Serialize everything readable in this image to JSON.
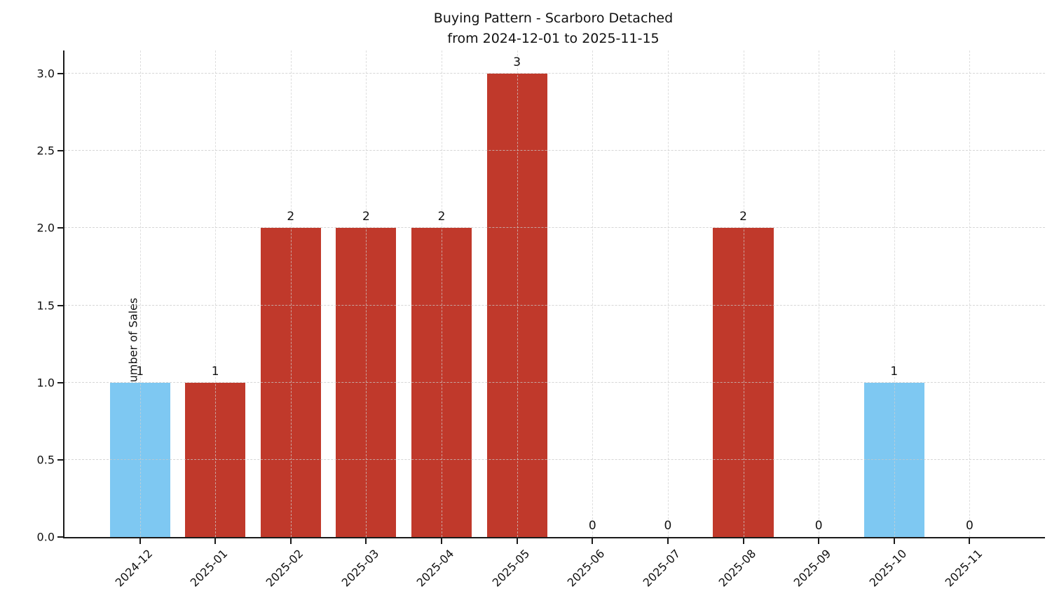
{
  "title": {
    "line1": "Buying Pattern - Scarboro Detached",
    "line2": "from 2024-12-01 to 2025-11-15"
  },
  "chart_data": {
    "type": "bar",
    "title": "Buying Pattern - Scarboro Detached\nfrom 2024-12-01 to 2025-11-15",
    "xlabel": "",
    "ylabel": "Number of Sales",
    "categories": [
      "2024-12",
      "2025-01",
      "2025-02",
      "2025-03",
      "2025-04",
      "2025-05",
      "2025-06",
      "2025-07",
      "2025-08",
      "2025-09",
      "2025-10",
      "2025-11"
    ],
    "values": [
      1,
      1,
      2,
      2,
      2,
      3,
      0,
      0,
      2,
      0,
      1,
      0
    ],
    "value_labels": [
      "1",
      "1",
      "2",
      "2",
      "2",
      "3",
      "0",
      "0",
      "2",
      "0",
      "1",
      "0"
    ],
    "bar_colors": [
      "#7ec8f2",
      "#c0392b",
      "#c0392b",
      "#c0392b",
      "#c0392b",
      "#c0392b",
      "#c0392b",
      "#c0392b",
      "#c0392b",
      "#c0392b",
      "#7ec8f2",
      "#c0392b"
    ],
    "colors": {
      "highlight_bar": "#7ec8f2",
      "default_bar": "#c0392b"
    },
    "ylim": [
      0,
      3.15
    ],
    "yticks": [
      0.0,
      0.5,
      1.0,
      1.5,
      2.0,
      2.5,
      3.0
    ],
    "ytick_labels": [
      "0.0",
      "0.5",
      "1.0",
      "1.5",
      "2.0",
      "2.5",
      "3.0"
    ],
    "xtick_rotation": 45,
    "grid": "dashed gridlines on both axes",
    "legend": "none",
    "bar_width_fraction": 0.8
  }
}
